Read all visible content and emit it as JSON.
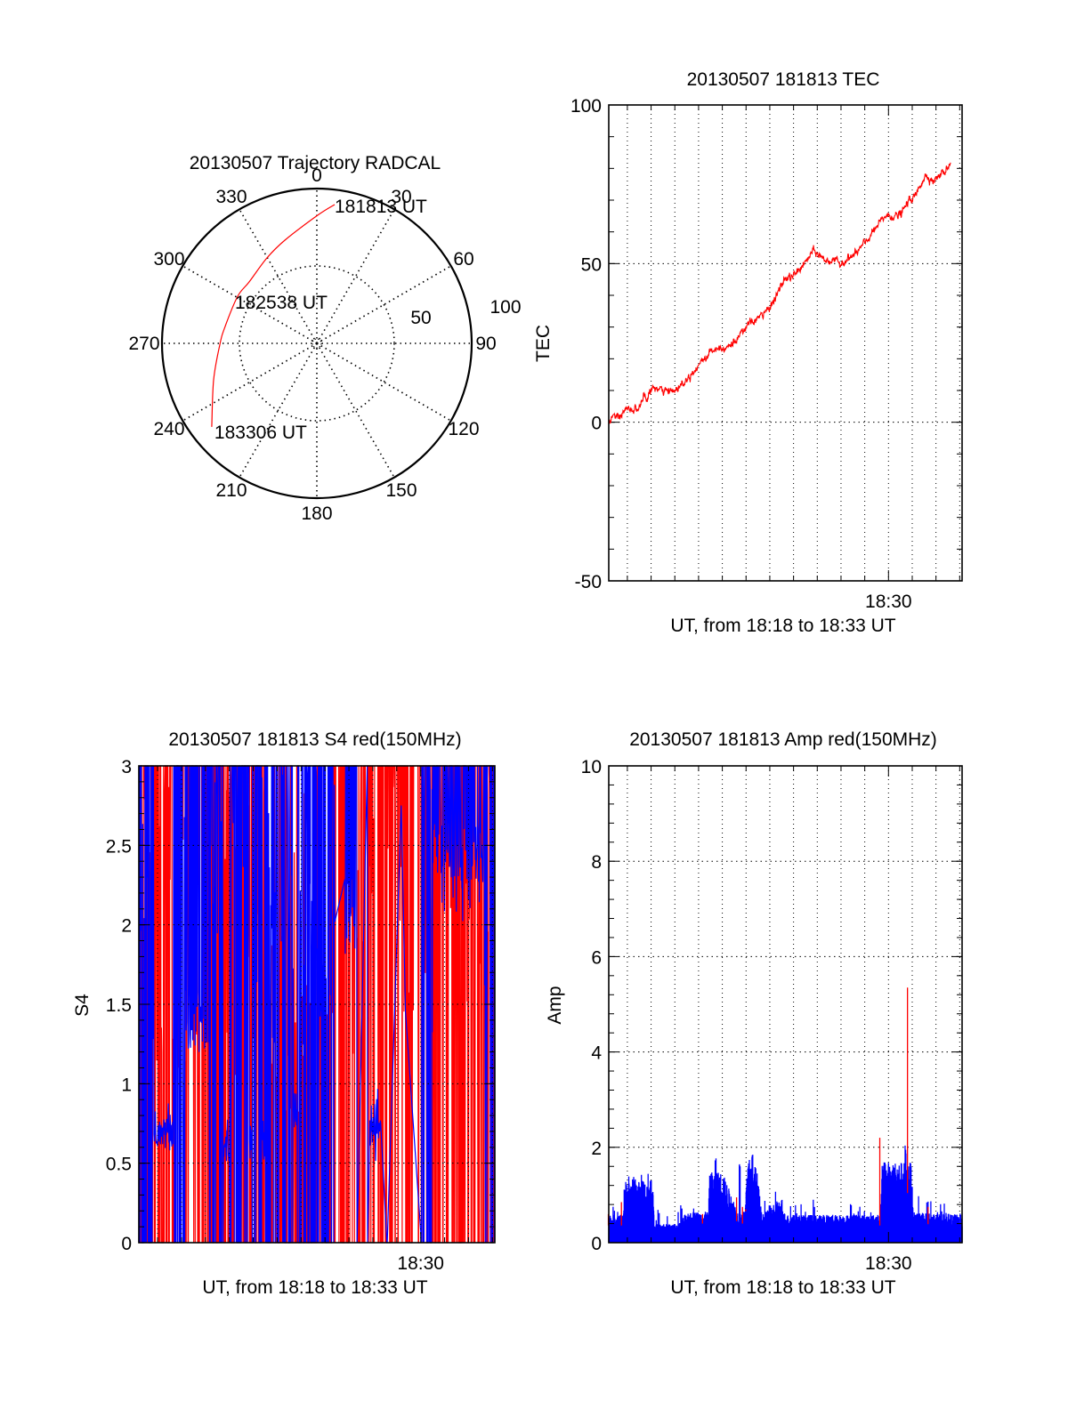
{
  "figure": {
    "date": "20130507"
  },
  "chart_data": [
    {
      "id": "trajectory",
      "type": "scatter",
      "subtype": "polar-line",
      "title": "20130507 Trajectory RADCAL",
      "angle_labels": [
        "0",
        "30",
        "60",
        "90",
        "120",
        "150",
        "180",
        "210",
        "240",
        "270",
        "300",
        "330"
      ],
      "radial_labels": [
        "50",
        "100"
      ],
      "radial_range": [
        0,
        100
      ],
      "grid": true,
      "series": [
        {
          "name": "trajectory",
          "color": "#ff0000",
          "points_azimuth_deg": [
            7.3,
            0.4,
            342.8,
            329.7,
            312.2,
            300.8,
            280.5,
            269.5,
            250.5,
            231.5
          ],
          "points_radius": [
            90.4,
            82.8,
            69.8,
            63.9,
            59.0,
            59.5,
            60.2,
            62.6,
            70.7,
            86.7
          ]
        }
      ],
      "annotations": [
        {
          "text": "181813 UT",
          "azimuth_deg": 7.3,
          "radius": 90.4
        },
        {
          "text": "182538 UT",
          "azimuth_deg": 300.8,
          "radius": 59.5
        },
        {
          "text": "183306 UT",
          "azimuth_deg": 231.5,
          "radius": 86.7
        }
      ]
    },
    {
      "id": "tec",
      "type": "line",
      "title": "20130507 181813 TEC",
      "xlabel": "UT, from 18:18 to 18:33 UT",
      "ylabel": "TEC",
      "xlim_seconds_after_1818": [
        13,
        906
      ],
      "x_tick_labels": [
        {
          "label": "18:30",
          "seconds_after_1818": 720
        }
      ],
      "ylim": [
        -50,
        100
      ],
      "y_tick_labels": [
        "-50",
        "0",
        "50",
        "100"
      ],
      "y_ticks": [
        -50,
        0,
        50,
        100
      ],
      "y_minor_step": 10,
      "grid": true,
      "series": [
        {
          "name": "TEC",
          "color": "#ff0000",
          "x_seconds_after_1818": [
            13,
            27,
            38,
            53,
            91,
            101,
            108,
            124,
            158,
            181,
            221,
            239,
            277,
            315,
            338,
            367,
            405,
            416,
            434,
            456,
            479,
            508,
            530,
            562,
            580,
            598,
            637,
            664,
            693,
            711,
            743,
            754,
            772,
            787,
            805,
            816,
            832,
            862,
            877
          ],
          "values": [
            0,
            2.5,
            0.5,
            4,
            4,
            9,
            7,
            11,
            9.5,
            10,
            15,
            18,
            23,
            24,
            26,
            31,
            34,
            36,
            39,
            45,
            46,
            50,
            54,
            51,
            51,
            50,
            53,
            57,
            62,
            65,
            65,
            66,
            70,
            71,
            76,
            78,
            76,
            79,
            82
          ]
        }
      ]
    },
    {
      "id": "s4",
      "type": "line",
      "title": "20130507 181813 S4 red(150MHz)",
      "xlabel": "UT, from 18:18 to 18:33 UT",
      "ylabel": "S4",
      "xlim_seconds_after_1818": [
        13,
        906
      ],
      "x_tick_labels": [
        {
          "label": "18:30",
          "seconds_after_1818": 720
        }
      ],
      "ylim": [
        0,
        3
      ],
      "y_tick_labels": [
        "0",
        "0.5",
        "1",
        "1.5",
        "2",
        "2.5",
        "3"
      ],
      "y_ticks": [
        0,
        0.5,
        1,
        1.5,
        2,
        2.5,
        3
      ],
      "y_minor_step": 0.1,
      "grid": true,
      "series": [
        {
          "name": "S4 red (150MHz)",
          "color": "#ff0000",
          "description": "highly oscillating values between 0 and >3 (clipped at 3)",
          "quiet_level_segments": []
        },
        {
          "name": "S4 blue",
          "color": "#0000ff",
          "description": "oscillating values; quiet intervals near 0.7",
          "quiet_segments": [
            {
              "from_s": 50,
              "to_s": 100,
              "level": 0.7
            },
            {
              "from_s": 225,
              "to_s": 240,
              "level": 0.6
            },
            {
              "from_s": 290,
              "to_s": 297,
              "level": 0.6
            },
            {
              "from_s": 322,
              "to_s": 328,
              "level": 0.65
            },
            {
              "from_s": 400,
              "to_s": 410,
              "level": 0.85
            },
            {
              "from_s": 590,
              "to_s": 620,
              "level": 0.7
            }
          ],
          "dense_segments": [
            {
              "from_s": 130,
              "to_s": 190,
              "level": 1.35
            },
            {
              "from_s": 530,
              "to_s": 560,
              "level": 2.0
            },
            {
              "from_s": 750,
              "to_s": 880,
              "level": 2.4
            }
          ]
        }
      ]
    },
    {
      "id": "amp",
      "type": "bar",
      "subtype": "dense-vertical-lines",
      "title": "20130507 181813 Amp red(150MHz)",
      "xlabel": "UT, from 18:18 to 18:33 UT",
      "ylabel": "Amp",
      "xlim_seconds_after_1818": [
        13,
        906
      ],
      "x_tick_labels": [
        {
          "label": "18:30",
          "seconds_after_1818": 720
        }
      ],
      "ylim": [
        0,
        10
      ],
      "y_tick_labels": [
        "0",
        "2",
        "4",
        "6",
        "8",
        "10"
      ],
      "y_ticks": [
        0,
        2,
        4,
        6,
        8,
        10
      ],
      "y_minor_step": 0.4,
      "grid": true,
      "series": [
        {
          "name": "Amp blue",
          "color": "#0000ff",
          "envelope_seconds": [
            13,
            50,
            52,
            125,
            128,
            190,
            210,
            265,
            268,
            300,
            340,
            355,
            365,
            385,
            400,
            420,
            442,
            460,
            520,
            700,
            703,
            778,
            782,
            906
          ],
          "envelope_level": [
            0.45,
            0.45,
            1.0,
            1.0,
            0.3,
            0.3,
            0.5,
            0.5,
            1.15,
            1.15,
            0.5,
            0.5,
            1.3,
            1.3,
            0.45,
            0.55,
            0.7,
            0.45,
            0.45,
            0.45,
            1.3,
            1.3,
            0.5,
            0.45
          ],
          "peaks": [
            {
              "s": 80,
              "v": 1.25
            },
            {
              "s": 283,
              "v": 1.8
            },
            {
              "s": 344,
              "v": 1.65
            },
            {
              "s": 376,
              "v": 1.9
            },
            {
              "s": 450,
              "v": 0.9
            },
            {
              "s": 763,
              "v": 2.05
            }
          ]
        },
        {
          "name": "Amp red",
          "color": "#ff0000",
          "spikes": [
            {
              "s": 12,
              "v": 0.6
            },
            {
              "s": 45,
              "v": 0.85
            },
            {
              "s": 250,
              "v": 0.6
            },
            {
              "s": 336,
              "v": 0.95
            },
            {
              "s": 351,
              "v": 0.75
            },
            {
              "s": 359,
              "v": 0.7
            },
            {
              "s": 698,
              "v": 2.2
            },
            {
              "s": 768,
              "v": 5.35
            },
            {
              "s": 820,
              "v": 0.75
            }
          ]
        }
      ]
    }
  ]
}
